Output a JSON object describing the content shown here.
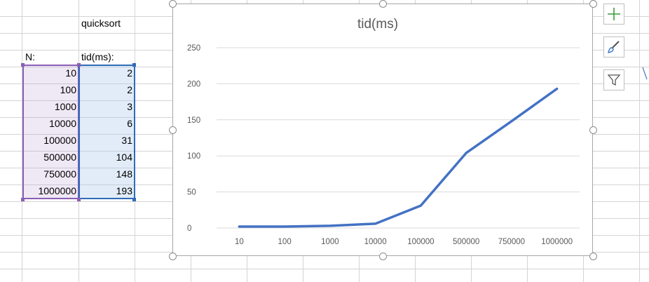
{
  "sheet": {
    "header_label": "quicksort",
    "col_a_header": "N:",
    "col_b_header": "tid(ms):",
    "rows": [
      {
        "n": "10",
        "t": "2"
      },
      {
        "n": "100",
        "t": "2"
      },
      {
        "n": "1000",
        "t": "3"
      },
      {
        "n": "10000",
        "t": "6"
      },
      {
        "n": "100000",
        "t": "31"
      },
      {
        "n": "500000",
        "t": "104"
      },
      {
        "n": "750000",
        "t": "148"
      },
      {
        "n": "1000000",
        "t": "193"
      }
    ]
  },
  "chart_data": {
    "type": "line",
    "title": "tid(ms)",
    "categories": [
      "10",
      "100",
      "1000",
      "10000",
      "100000",
      "500000",
      "750000",
      "1000000"
    ],
    "series": [
      {
        "values": [
          2,
          2,
          3,
          6,
          31,
          104,
          148,
          193
        ]
      }
    ],
    "y_ticks": [
      "0",
      "50",
      "100",
      "150",
      "200",
      "250"
    ],
    "ylim": [
      0,
      250
    ],
    "grid": true,
    "legend": "none",
    "line_color": "#4472c4"
  },
  "chart_tools": {
    "add_element_icon": "plus-icon",
    "style_icon": "brush-icon",
    "filter_icon": "funnel-icon"
  }
}
